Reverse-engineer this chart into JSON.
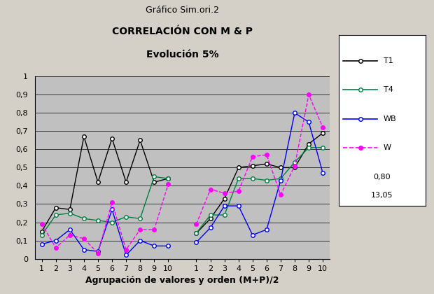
{
  "title_line1": "Gráfico Sim.ori.2",
  "title_line2": "CORRELACIÓN CON M & P",
  "title_line3": "Evolución 5%",
  "xlabel": "Agrupación de valores y orden (M+P)/2",
  "ylim": [
    0,
    1.0
  ],
  "yticks": [
    0,
    0.1,
    0.2,
    0.3,
    0.4,
    0.5,
    0.6,
    0.7,
    0.8,
    0.9,
    1.0
  ],
  "ytick_labels": [
    "0",
    "0,1",
    "0,2",
    "0,3",
    "0,4",
    "0,5",
    "0,6",
    "0,7",
    "0,8",
    "0,9",
    "1"
  ],
  "background_color": "#c0c0c0",
  "fig_background": "#d4d0c8",
  "legend_extra": [
    "0,80",
    "13,05"
  ],
  "T1_set1": [
    0.15,
    0.28,
    0.27,
    0.67,
    0.42,
    0.66,
    0.42,
    0.65,
    0.42,
    0.44
  ],
  "T4_set1": [
    0.13,
    0.24,
    0.25,
    0.22,
    0.21,
    0.2,
    0.23,
    0.22,
    0.45,
    0.44
  ],
  "WB_set1": [
    0.08,
    0.1,
    0.16,
    0.05,
    0.04,
    0.27,
    0.02,
    0.1,
    0.07,
    0.07
  ],
  "W_set1": [
    0.19,
    0.06,
    0.13,
    0.11,
    0.03,
    0.31,
    0.05,
    0.16,
    0.16,
    0.41
  ],
  "T1_set2": [
    0.14,
    0.22,
    0.33,
    0.5,
    0.51,
    0.52,
    0.5,
    0.5,
    0.63,
    0.69
  ],
  "T4_set2": [
    0.14,
    0.24,
    0.24,
    0.44,
    0.44,
    0.43,
    0.44,
    0.53,
    0.61,
    0.61
  ],
  "WB_set2": [
    0.09,
    0.17,
    0.29,
    0.29,
    0.13,
    0.16,
    0.43,
    0.8,
    0.75,
    0.47
  ],
  "W_set2": [
    0.19,
    0.38,
    0.36,
    0.37,
    0.56,
    0.57,
    0.35,
    0.51,
    0.9,
    0.72
  ],
  "colors": {
    "T1": "#000000",
    "T4": "#008040",
    "WB": "#0000ff",
    "W": "#ff00ff"
  }
}
